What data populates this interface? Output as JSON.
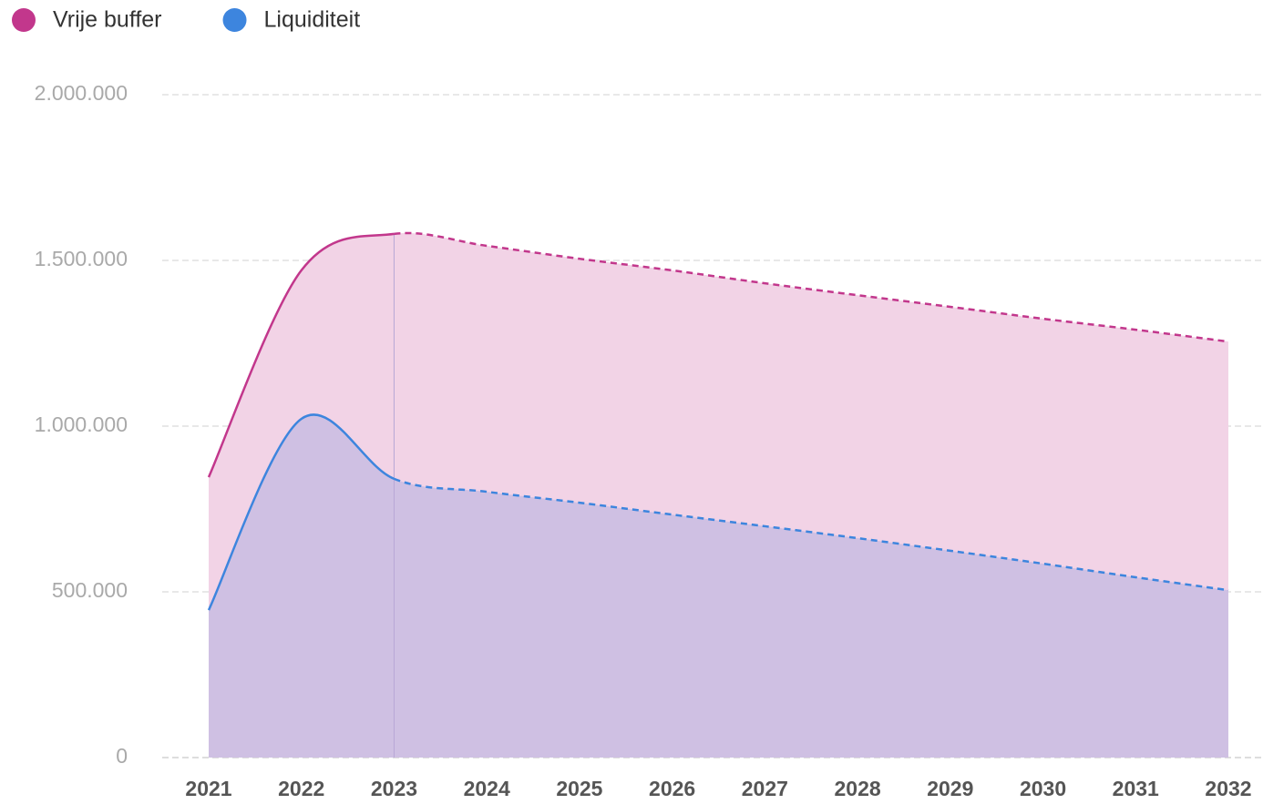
{
  "chart_data": {
    "type": "area",
    "categories": [
      "2021",
      "2022",
      "2023",
      "2024",
      "2025",
      "2026",
      "2027",
      "2028",
      "2029",
      "2030",
      "2031",
      "2032"
    ],
    "series": [
      {
        "name": "Vrije buffer",
        "color": "#c2378c",
        "fill": "#f2d3e6",
        "values": [
          846000,
          1470000,
          1580000,
          1544000,
          1505000,
          1470000,
          1431000,
          1395000,
          1360000,
          1324000,
          1291000,
          1255000
        ]
      },
      {
        "name": "Liquiditeit",
        "color": "#3d85de",
        "fill": "rgba(70,120,215,0.2)",
        "values": [
          445000,
          1022000,
          841000,
          802000,
          769000,
          733000,
          698000,
          662000,
          624000,
          585000,
          544000,
          505000
        ]
      }
    ],
    "dashed_from": "2023",
    "ylim": [
      0,
      2000000
    ],
    "yticks": [
      0,
      {
        "value": 500000,
        "label": "500.000"
      },
      {
        "value": 1000000,
        "label": "1.000.000"
      },
      {
        "value": 1500000,
        "label": "1.500.000"
      },
      {
        "value": 2000000,
        "label": "2.000.000"
      }
    ],
    "grid": true
  }
}
